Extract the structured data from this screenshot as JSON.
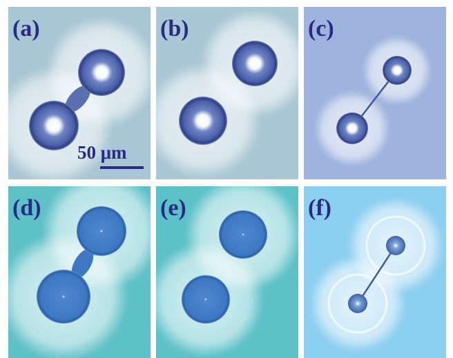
{
  "panels": [
    {
      "label": "(a)"
    },
    {
      "label": "(b)"
    },
    {
      "label": "(c)"
    },
    {
      "label": "(d)"
    },
    {
      "label": "(e)"
    },
    {
      "label": "(f)"
    }
  ],
  "scale_bar": {
    "label": "50 μm"
  }
}
